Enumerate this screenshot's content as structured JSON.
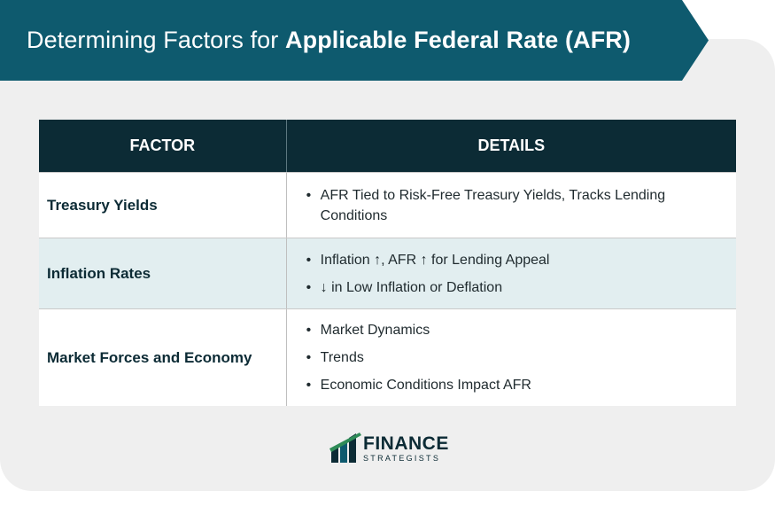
{
  "title": {
    "light": "Determining Factors for ",
    "bold": "Applicable Federal Rate (AFR)"
  },
  "table": {
    "headers": [
      "FACTOR",
      "DETAILS"
    ],
    "rows": [
      {
        "factor": "Treasury Yields",
        "details": [
          "AFR Tied to Risk-Free Treasury Yields, Tracks Lending Conditions"
        ]
      },
      {
        "factor": "Inflation Rates",
        "details": [
          "Inflation ↑, AFR ↑ for Lending Appeal",
          "↓ in Low Inflation or Deflation"
        ]
      },
      {
        "factor": "Market Forces and Economy",
        "details": [
          "Market Dynamics",
          "Trends",
          "Economic Conditions Impact AFR"
        ]
      }
    ]
  },
  "logo": {
    "main": "FINANCE",
    "sub": "STRATEGISTS",
    "icon": "finance-strategists-logo-icon"
  },
  "colors": {
    "banner": "#0e5a6e",
    "header": "#0c2b35",
    "row_alt": "#e2eef0",
    "card": "#efefef"
  }
}
